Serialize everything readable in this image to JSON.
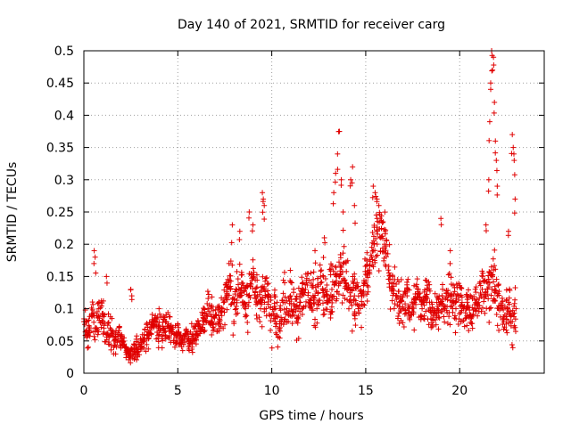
{
  "chart_data": {
    "type": "scatter",
    "title": "Day 140 of 2021, SRMTID for receiver carg",
    "xlabel": "GPS time / hours",
    "ylabel": "SRMTID / TECUs",
    "xlim": [
      0,
      24.5
    ],
    "ylim": [
      0,
      0.5
    ],
    "x_ticks": [
      0,
      5,
      10,
      15,
      20
    ],
    "x_tick_labels": [
      "0",
      "5",
      "10",
      "15",
      "20"
    ],
    "y_ticks": [
      0,
      0.05,
      0.1,
      0.15,
      0.2,
      0.25,
      0.3,
      0.35,
      0.4,
      0.45,
      0.5
    ],
    "y_tick_labels": [
      "0",
      "0.05",
      "0.1",
      "0.15",
      "0.2",
      "0.25",
      "0.3",
      "0.35",
      "0.4",
      "0.45",
      "0.5"
    ],
    "grid": true,
    "marker": "plus",
    "point_color": "#e00000",
    "series": [
      {
        "name": "SRMTID",
        "x": [
          0.0,
          0.2,
          0.4,
          0.6,
          0.8,
          1.0,
          1.2,
          1.4,
          1.6,
          1.8,
          2.0,
          2.2,
          2.4,
          2.6,
          2.8,
          3.0,
          3.2,
          3.4,
          3.6,
          3.8,
          4.0,
          4.2,
          4.4,
          4.6,
          4.8,
          5.0,
          5.2,
          5.4,
          5.6,
          5.8,
          6.0,
          6.2,
          6.4,
          6.6,
          6.8,
          7.0,
          7.2,
          7.4,
          7.6,
          7.8,
          8.0,
          8.2,
          8.4,
          8.6,
          8.8,
          9.0,
          9.2,
          9.4,
          9.6,
          9.8,
          10.0,
          10.2,
          10.4,
          10.6,
          10.8,
          11.0,
          11.2,
          11.4,
          11.6,
          11.8,
          12.0,
          12.2,
          12.4,
          12.6,
          12.8,
          13.0,
          13.2,
          13.4,
          13.6,
          13.8,
          14.0,
          14.2,
          14.4,
          14.6,
          14.8,
          15.0,
          15.2,
          15.4,
          15.6,
          15.8,
          16.0,
          16.2,
          16.4,
          16.6,
          16.8,
          17.0,
          17.2,
          17.4,
          17.6,
          17.8,
          18.0,
          18.2,
          18.4,
          18.6,
          18.8,
          19.0,
          19.2,
          19.4,
          19.6,
          19.8,
          20.0,
          20.2,
          20.4,
          20.6,
          20.8,
          21.0,
          21.2,
          21.4,
          21.6,
          21.8,
          22.0,
          22.2,
          22.4,
          22.6,
          22.8,
          23.0
        ],
        "y": [
          0.08,
          0.06,
          0.09,
          0.07,
          0.1,
          0.08,
          0.06,
          0.07,
          0.05,
          0.06,
          0.05,
          0.04,
          0.03,
          0.03,
          0.04,
          0.04,
          0.05,
          0.06,
          0.07,
          0.08,
          0.06,
          0.07,
          0.08,
          0.07,
          0.06,
          0.06,
          0.05,
          0.06,
          0.05,
          0.06,
          0.06,
          0.07,
          0.08,
          0.1,
          0.08,
          0.09,
          0.08,
          0.1,
          0.12,
          0.13,
          0.11,
          0.12,
          0.14,
          0.1,
          0.12,
          0.15,
          0.11,
          0.1,
          0.13,
          0.12,
          0.09,
          0.1,
          0.07,
          0.11,
          0.1,
          0.12,
          0.09,
          0.1,
          0.12,
          0.13,
          0.11,
          0.12,
          0.1,
          0.14,
          0.12,
          0.11,
          0.13,
          0.14,
          0.15,
          0.17,
          0.13,
          0.11,
          0.12,
          0.1,
          0.12,
          0.14,
          0.16,
          0.19,
          0.22,
          0.21,
          0.2,
          0.16,
          0.13,
          0.12,
          0.11,
          0.1,
          0.12,
          0.09,
          0.11,
          0.13,
          0.1,
          0.12,
          0.11,
          0.09,
          0.1,
          0.11,
          0.1,
          0.12,
          0.11,
          0.1,
          0.12,
          0.1,
          0.11,
          0.09,
          0.1,
          0.11,
          0.13,
          0.12,
          0.14,
          0.16,
          0.12,
          0.1,
          0.09,
          0.11,
          0.08,
          0.1
        ],
        "spread": [
          0.025,
          0.025,
          0.03,
          0.025,
          0.025,
          0.03,
          0.025,
          0.02,
          0.02,
          0.02,
          0.015,
          0.015,
          0.012,
          0.012,
          0.015,
          0.015,
          0.015,
          0.02,
          0.02,
          0.025,
          0.02,
          0.02,
          0.02,
          0.02,
          0.02,
          0.02,
          0.015,
          0.015,
          0.015,
          0.02,
          0.02,
          0.02,
          0.025,
          0.03,
          0.03,
          0.03,
          0.03,
          0.035,
          0.04,
          0.04,
          0.04,
          0.04,
          0.04,
          0.035,
          0.04,
          0.045,
          0.04,
          0.035,
          0.035,
          0.04,
          0.035,
          0.035,
          0.03,
          0.035,
          0.035,
          0.035,
          0.03,
          0.035,
          0.035,
          0.04,
          0.035,
          0.035,
          0.035,
          0.04,
          0.04,
          0.035,
          0.04,
          0.04,
          0.045,
          0.05,
          0.04,
          0.035,
          0.04,
          0.035,
          0.035,
          0.04,
          0.045,
          0.05,
          0.05,
          0.05,
          0.05,
          0.04,
          0.035,
          0.035,
          0.035,
          0.03,
          0.035,
          0.03,
          0.03,
          0.035,
          0.03,
          0.035,
          0.03,
          0.03,
          0.03,
          0.03,
          0.03,
          0.035,
          0.03,
          0.03,
          0.035,
          0.03,
          0.035,
          0.03,
          0.03,
          0.035,
          0.04,
          0.04,
          0.045,
          0.05,
          0.045,
          0.04,
          0.04,
          0.045,
          0.04,
          0.04
        ]
      }
    ],
    "outliers": {
      "x": [
        0.55,
        0.6,
        1.2,
        2.5,
        2.55,
        4.0,
        7.9,
        8.3,
        8.8,
        9.0,
        9.5,
        9.55,
        9.6,
        12.3,
        12.8,
        13.3,
        13.4,
        13.5,
        13.6,
        13.7,
        13.8,
        14.2,
        14.3,
        14.4,
        15.4,
        15.5,
        15.6,
        15.7,
        19.0,
        19.5,
        21.4,
        21.55,
        21.6,
        21.65,
        21.7,
        21.75,
        21.8,
        21.85,
        21.9,
        21.95,
        22.0,
        22.6,
        22.8,
        22.85,
        22.9,
        22.95
      ],
      "y": [
        0.19,
        0.18,
        0.15,
        0.13,
        0.12,
        0.1,
        0.23,
        0.22,
        0.25,
        0.23,
        0.28,
        0.27,
        0.26,
        0.19,
        0.21,
        0.28,
        0.31,
        0.34,
        0.375,
        0.3,
        0.25,
        0.3,
        0.32,
        0.26,
        0.29,
        0.28,
        0.27,
        0.26,
        0.24,
        0.19,
        0.23,
        0.3,
        0.39,
        0.45,
        0.5,
        0.47,
        0.49,
        0.42,
        0.36,
        0.33,
        0.29,
        0.22,
        0.37,
        0.35,
        0.33,
        0.27
      ]
    }
  }
}
